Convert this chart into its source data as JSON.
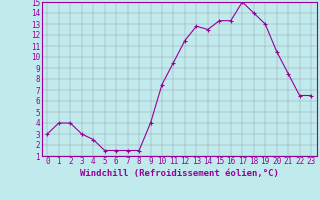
{
  "x": [
    0,
    1,
    2,
    3,
    4,
    5,
    6,
    7,
    8,
    9,
    10,
    11,
    12,
    13,
    14,
    15,
    16,
    17,
    18,
    19,
    20,
    21,
    22,
    23
  ],
  "y": [
    3.0,
    4.0,
    4.0,
    3.0,
    2.5,
    1.5,
    1.5,
    1.5,
    1.5,
    4.0,
    7.5,
    9.5,
    11.5,
    12.8,
    12.5,
    13.3,
    13.3,
    15.0,
    14.0,
    13.0,
    10.5,
    8.5,
    6.5,
    6.5
  ],
  "line_color": "#990099",
  "marker": "+",
  "marker_size": 3,
  "marker_linewidth": 0.8,
  "background_color": "#c0eaec",
  "grid_color": "#9999aa",
  "xlabel": "Windchill (Refroidissement éolien,°C)",
  "xlim": [
    -0.5,
    23.5
  ],
  "ylim": [
    1,
    15
  ],
  "yticks": [
    1,
    2,
    3,
    4,
    5,
    6,
    7,
    8,
    9,
    10,
    11,
    12,
    13,
    14,
    15
  ],
  "xticks": [
    0,
    1,
    2,
    3,
    4,
    5,
    6,
    7,
    8,
    9,
    10,
    11,
    12,
    13,
    14,
    15,
    16,
    17,
    18,
    19,
    20,
    21,
    22,
    23
  ],
  "tick_label_fontsize": 5.5,
  "xlabel_fontsize": 6.5,
  "axis_label_color": "#990099",
  "spine_color": "#990099",
  "line_width": 0.8
}
